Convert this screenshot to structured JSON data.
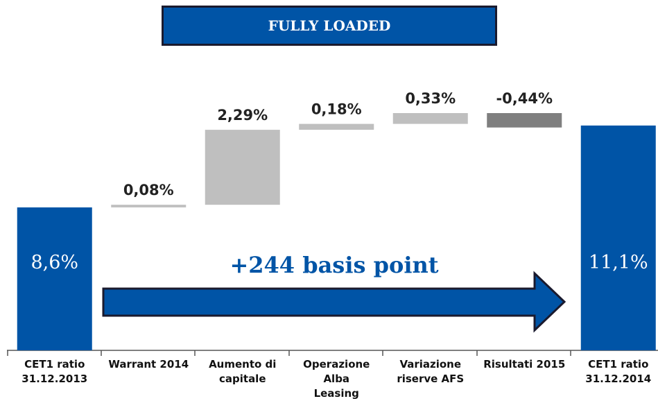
{
  "chart_data": {
    "type": "waterfall",
    "title": "FULLY LOADED",
    "categories": [
      "CET1 ratio\n31.12.2013",
      "Warrant 2014",
      "Aumento di\ncapitale",
      "Operazione Alba\nLeasing",
      "Variazione\nriserve AFS",
      "Risultati 2015",
      "CET1 ratio\n31.12.2014"
    ],
    "values": [
      8.6,
      0.08,
      2.29,
      0.18,
      0.33,
      -0.44,
      11.1
    ],
    "value_labels": [
      "8,6%",
      "0,08%",
      "2,29%",
      "0,18%",
      "0,33%",
      "-0,44%",
      "11,1%"
    ],
    "is_total": [
      true,
      false,
      false,
      false,
      false,
      false,
      true
    ],
    "total_color": "#0054a6",
    "increase_color": "#bfbfbf",
    "decrease_color": "#7f7f7f",
    "annotation": "+244 basis point"
  }
}
